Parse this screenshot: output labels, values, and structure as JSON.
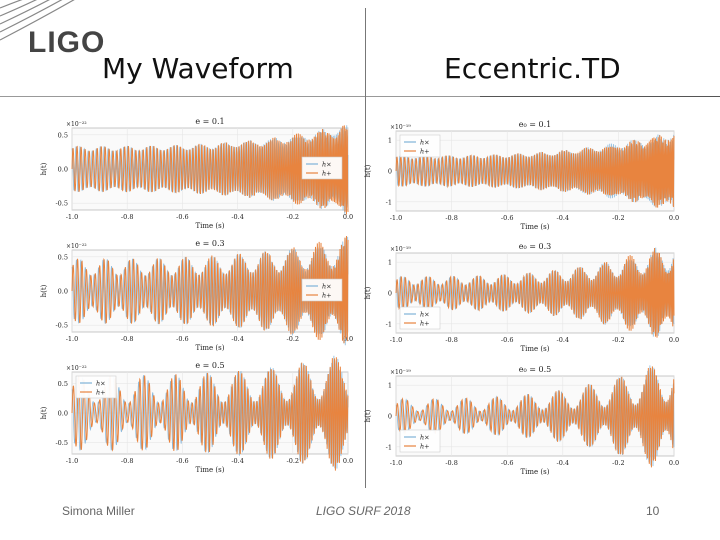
{
  "header": {
    "logo_text": "LIGO",
    "left_title": "My Waveform",
    "right_title": "Eccentric.TD"
  },
  "footer": {
    "author": "Simona Miller",
    "event": "LIGO SURF 2018",
    "page_number": "10"
  },
  "colors": {
    "series_a": "#7fb3d8",
    "series_b": "#e8843f"
  },
  "chart_data": [
    {
      "type": "line",
      "group": "My Waveform",
      "title": "e = 0.1",
      "offset_label": "×10⁻²²",
      "xlabel": "Time (s)",
      "ylabel": "h(t)",
      "xlim": [
        -1.0,
        0.0
      ],
      "ylim": [
        -0.6,
        0.6
      ],
      "xticks": [
        "-1.0",
        "-0.8",
        "-0.6",
        "-0.4",
        "-0.2",
        "0.0"
      ],
      "yticks": [
        "0.5",
        "0.0",
        "-0.5"
      ],
      "ytick_values": [
        0.5,
        0.0,
        -0.5
      ],
      "legend": {
        "position": "center-right",
        "entries": [
          "h×",
          "h+"
        ]
      },
      "wave": {
        "cycles": 68,
        "amp_start": 0.3,
        "amp_end": 0.6,
        "eccentricity": 0.1
      },
      "series": [
        {
          "name": "h×"
        },
        {
          "name": "h+"
        }
      ]
    },
    {
      "type": "line",
      "group": "My Waveform",
      "title": "e = 0.3",
      "offset_label": "×10⁻²²",
      "xlabel": "Time (s)",
      "ylabel": "h(t)",
      "xlim": [
        -1.0,
        0.0
      ],
      "ylim": [
        -0.6,
        0.6
      ],
      "xticks": [
        "-1.0",
        "-0.8",
        "-0.6",
        "-0.4",
        "-0.2",
        "0.0"
      ],
      "yticks": [
        "0.5",
        "0.0",
        "-0.5"
      ],
      "ytick_values": [
        0.5,
        0.0,
        -0.5
      ],
      "legend": {
        "position": "center-right",
        "entries": [
          "h×",
          "h+"
        ]
      },
      "wave": {
        "cycles": 62,
        "amp_start": 0.35,
        "amp_end": 0.6,
        "eccentricity": 0.3
      },
      "series": [
        {
          "name": "h×"
        },
        {
          "name": "h+"
        }
      ]
    },
    {
      "type": "line",
      "group": "My Waveform",
      "title": "e = 0.5",
      "offset_label": "×10⁻²²",
      "xlabel": "Time (s)",
      "ylabel": "h(t)",
      "xlim": [
        -1.0,
        0.0
      ],
      "ylim": [
        -0.7,
        0.7
      ],
      "xticks": [
        "-1.0",
        "-0.8",
        "-0.6",
        "-0.4",
        "-0.2",
        "0.0"
      ],
      "yticks": [
        "0.5",
        "0.0",
        "-0.5"
      ],
      "ytick_values": [
        0.5,
        0.0,
        -0.5
      ],
      "legend": {
        "position": "top-left",
        "entries": [
          "h×",
          "h+"
        ]
      },
      "wave": {
        "cycles": 52,
        "amp_start": 0.4,
        "amp_end": 0.65,
        "eccentricity": 0.5
      },
      "series": [
        {
          "name": "h×"
        },
        {
          "name": "h+"
        }
      ]
    },
    {
      "type": "line",
      "group": "Eccentric.TD",
      "title": "e₀ = 0.1",
      "offset_label": "×10⁻¹⁹",
      "xlabel": "Time (s)",
      "ylabel": "h(t)",
      "xlim": [
        -1.0,
        0.0
      ],
      "ylim": [
        -1.3,
        1.3
      ],
      "xticks": [
        "-1.0",
        "-0.8",
        "-0.6",
        "-0.4",
        "-0.2",
        "0.0"
      ],
      "yticks": [
        "1",
        "0",
        "-1"
      ],
      "ytick_values": [
        1,
        0,
        -1
      ],
      "legend": {
        "position": "top-left",
        "entries": [
          "h×",
          "h+"
        ]
      },
      "wave": {
        "cycles": 72,
        "amp_start": 0.45,
        "amp_end": 1.2,
        "eccentricity": 0.1
      },
      "series": [
        {
          "name": "h×"
        },
        {
          "name": "h+"
        }
      ]
    },
    {
      "type": "line",
      "group": "Eccentric.TD",
      "title": "e₀ = 0.3",
      "offset_label": "×10⁻¹⁹",
      "xlabel": "Time (s)",
      "ylabel": "h(t)",
      "xlim": [
        -1.0,
        0.0
      ],
      "ylim": [
        -1.3,
        1.3
      ],
      "xticks": [
        "-1.0",
        "-0.8",
        "-0.6",
        "-0.4",
        "-0.2",
        "0.0"
      ],
      "yticks": [
        "1",
        "0",
        "-1"
      ],
      "ytick_values": [
        1,
        0,
        -1
      ],
      "legend": {
        "position": "bottom-left",
        "entries": [
          "h×",
          "h+"
        ]
      },
      "wave": {
        "cycles": 66,
        "amp_start": 0.4,
        "amp_end": 1.25,
        "eccentricity": 0.3
      },
      "series": [
        {
          "name": "h×"
        },
        {
          "name": "h+"
        }
      ]
    },
    {
      "type": "line",
      "group": "Eccentric.TD",
      "title": "e₀ = 0.5",
      "offset_label": "×10⁻¹⁹",
      "xlabel": "Time (s)",
      "ylabel": "h(t)",
      "xlim": [
        -1.0,
        0.0
      ],
      "ylim": [
        -1.3,
        1.3
      ],
      "xticks": [
        "-1.0",
        "-0.8",
        "-0.6",
        "-0.4",
        "-0.2",
        "0.0"
      ],
      "yticks": [
        "1",
        "0",
        "-1"
      ],
      "ytick_values": [
        1,
        0,
        -1
      ],
      "legend": {
        "position": "bottom-left",
        "entries": [
          "h×",
          "h+"
        ]
      },
      "wave": {
        "cycles": 54,
        "amp_start": 0.35,
        "amp_end": 1.25,
        "eccentricity": 0.5
      },
      "series": [
        {
          "name": "h×"
        },
        {
          "name": "h+"
        }
      ]
    }
  ]
}
